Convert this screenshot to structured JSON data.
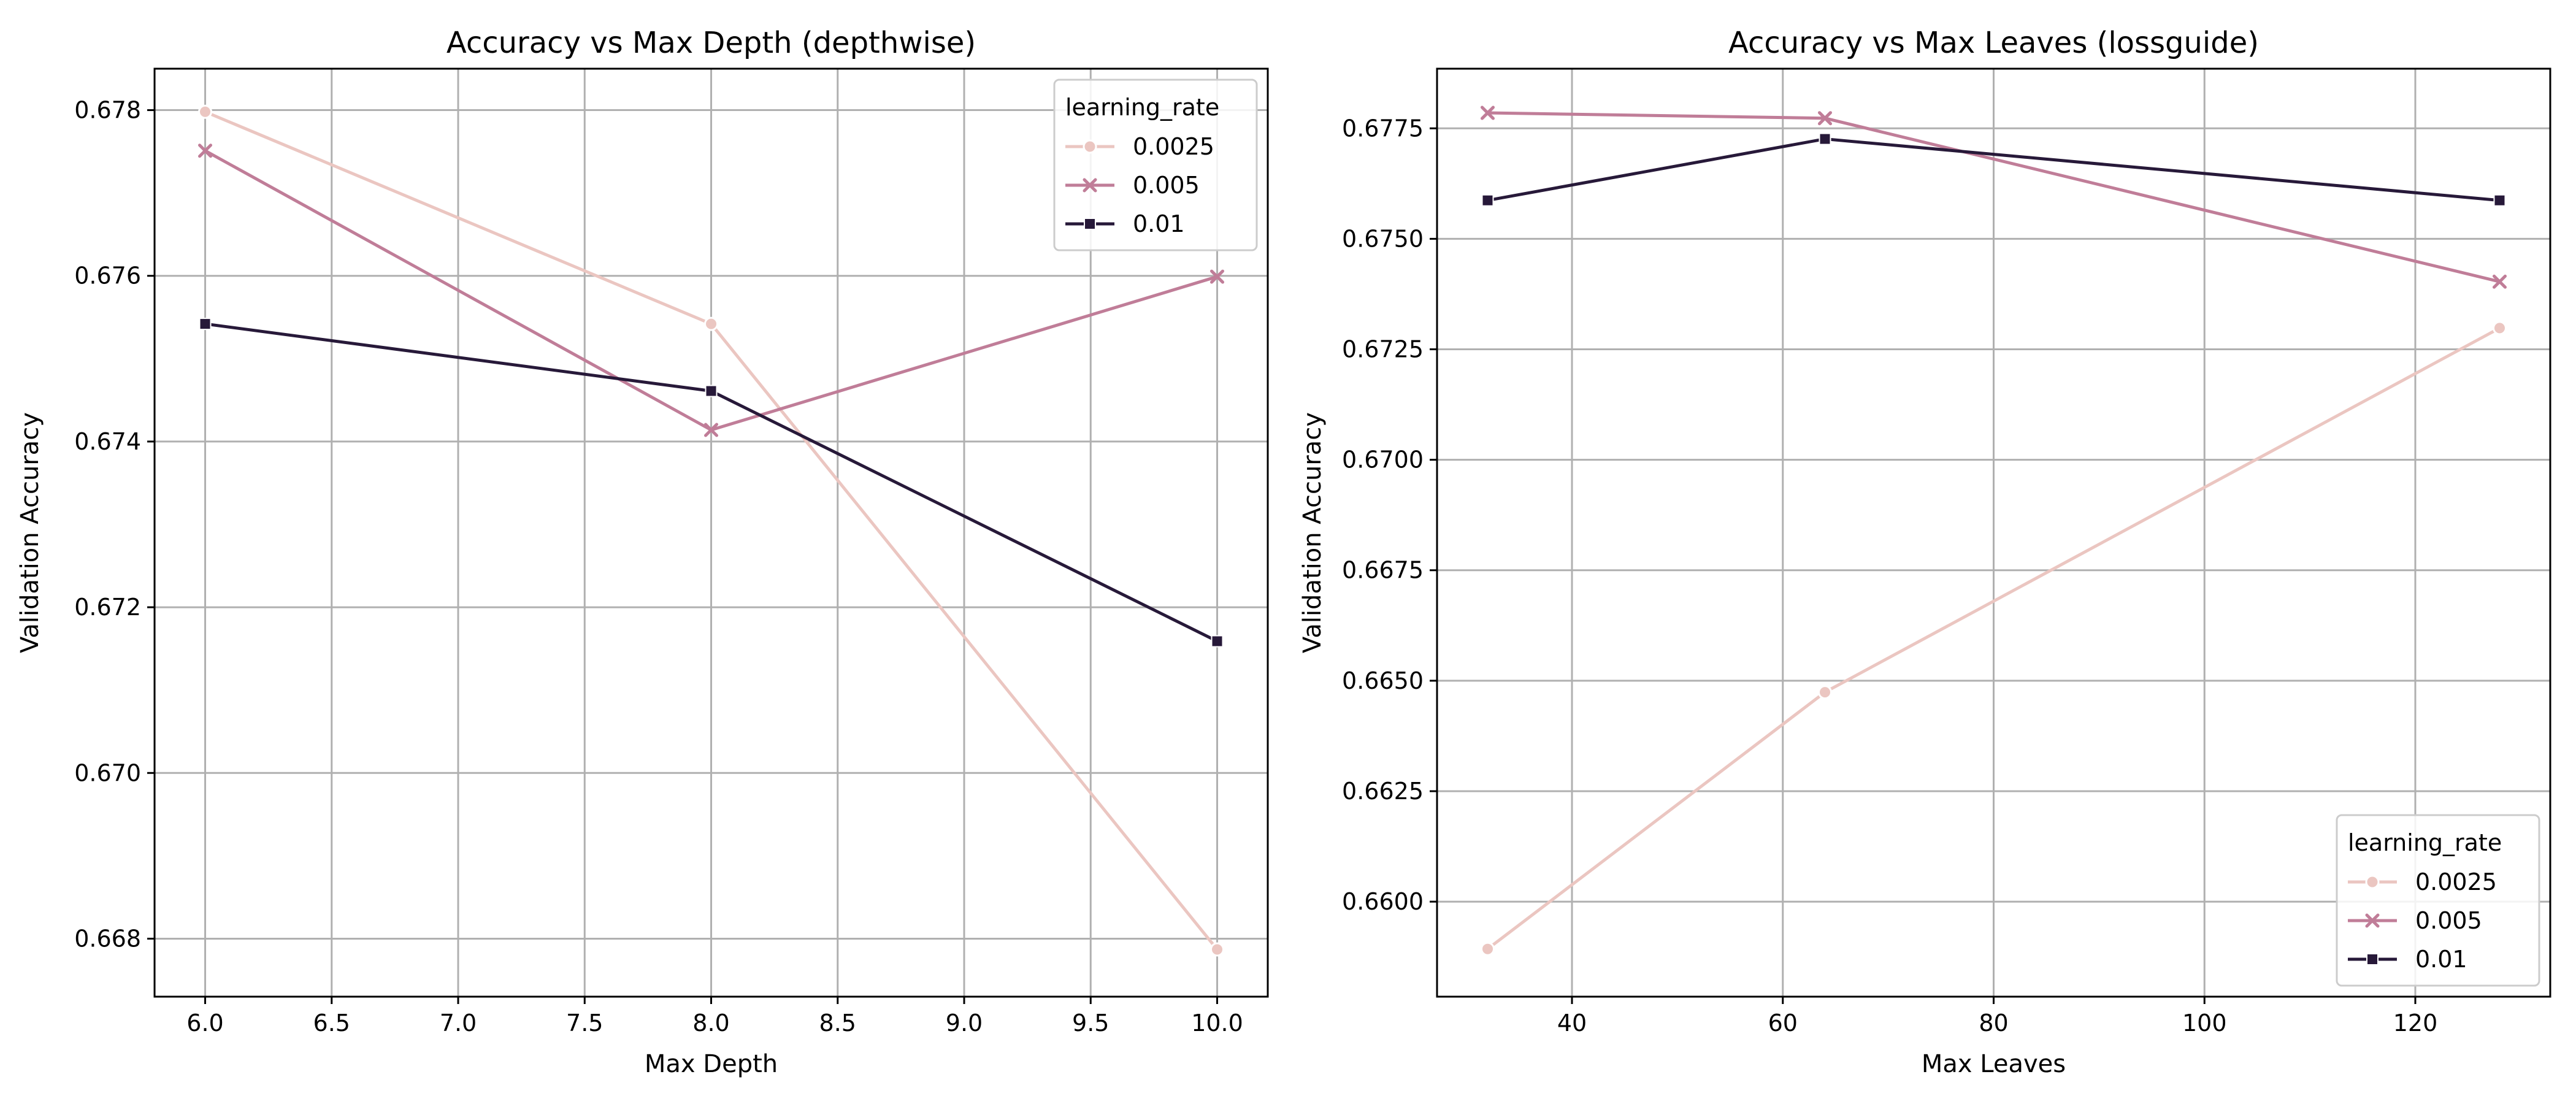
{
  "chart_data": [
    {
      "type": "line",
      "title": "Accuracy vs Max Depth (depthwise)",
      "xlabel": "Max Depth",
      "ylabel": "Validation Accuracy",
      "xlim": [
        5.8,
        10.2
      ],
      "ylim": [
        0.6673,
        0.6785
      ],
      "xticks": [
        6.0,
        6.5,
        7.0,
        7.5,
        8.0,
        8.5,
        9.0,
        9.5,
        10.0
      ],
      "xtick_labels": [
        "6.0",
        "6.5",
        "7.0",
        "7.5",
        "8.0",
        "8.5",
        "9.0",
        "9.5",
        "10.0"
      ],
      "yticks": [
        0.668,
        0.67,
        0.672,
        0.674,
        0.676,
        0.678
      ],
      "ytick_labels": [
        "0.668",
        "0.670",
        "0.672",
        "0.674",
        "0.676",
        "0.678"
      ],
      "grid": true,
      "legend": {
        "title": "learning_rate",
        "position": "top-right"
      },
      "x": [
        6.0,
        8.0,
        10.0
      ],
      "series": [
        {
          "name": "0.0025",
          "values": [
            0.67798,
            0.67542,
            0.66787
          ],
          "color": "#ebc6c1",
          "marker": "circle"
        },
        {
          "name": "0.005",
          "values": [
            0.67751,
            0.67414,
            0.67599
          ],
          "color": "#c07d98",
          "marker": "x"
        },
        {
          "name": "0.01",
          "values": [
            0.67542,
            0.67461,
            0.67159
          ],
          "color": "#271939",
          "marker": "square"
        }
      ]
    },
    {
      "type": "line",
      "title": "Accuracy vs Max Leaves (lossguide)",
      "xlabel": "Max Leaves",
      "ylabel": "Validation Accuracy",
      "xlim": [
        27.2,
        132.8
      ],
      "ylim": [
        0.65785,
        0.67885
      ],
      "xticks": [
        40,
        60,
        80,
        100,
        120
      ],
      "xtick_labels": [
        "40",
        "60",
        "80",
        "100",
        "120"
      ],
      "yticks": [
        0.66,
        0.6625,
        0.665,
        0.6675,
        0.67,
        0.6725,
        0.675,
        0.6775
      ],
      "ytick_labels": [
        "0.6600",
        "0.6625",
        "0.6650",
        "0.6675",
        "0.6700",
        "0.6725",
        "0.6750",
        "0.6775"
      ],
      "grid": true,
      "legend": {
        "title": "learning_rate",
        "position": "bottom-right"
      },
      "x": [
        32,
        64,
        128
      ],
      "series": [
        {
          "name": "0.0025",
          "values": [
            0.65893,
            0.66474,
            0.67298
          ],
          "color": "#ebc6c1",
          "marker": "circle"
        },
        {
          "name": "0.005",
          "values": [
            0.67785,
            0.67773,
            0.67403
          ],
          "color": "#c07d98",
          "marker": "x"
        },
        {
          "name": "0.01",
          "values": [
            0.67587,
            0.67726,
            0.67587
          ],
          "color": "#271939",
          "marker": "square"
        }
      ]
    }
  ]
}
